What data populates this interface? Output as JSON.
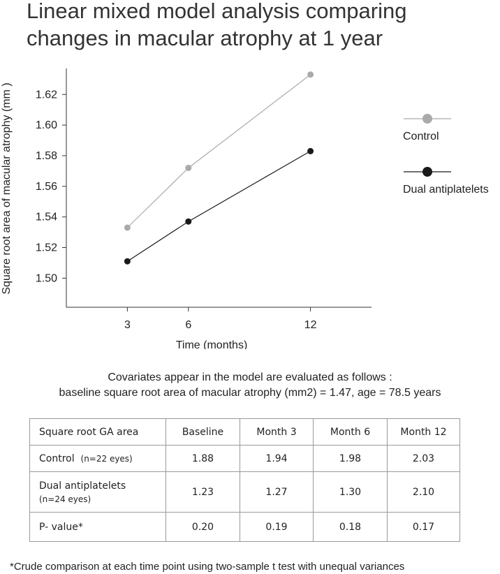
{
  "chart_data": {
    "type": "line",
    "title": "Linear mixed model analysis comparing changes in macular atrophy at 1 year",
    "xlabel": "Time (months)",
    "ylabel": "Square root area of macular atrophy (mm )",
    "x": [
      3,
      6,
      12
    ],
    "x_ticks": [
      "3",
      "6",
      "12"
    ],
    "y_ticks": [
      "1.50",
      "1.52",
      "1.54",
      "1.56",
      "1.58",
      "1.60",
      "1.62"
    ],
    "xlim": [
      0,
      15
    ],
    "ylim": [
      1.481,
      1.637
    ],
    "grid": false,
    "legend_position": "right",
    "series": [
      {
        "name": "Control",
        "values": [
          1.533,
          1.572,
          1.633
        ],
        "color": "#aaaaaa"
      },
      {
        "name": "Dual antiplatelets",
        "values": [
          1.511,
          1.537,
          1.583
        ],
        "color": "#1a1a1a"
      }
    ]
  },
  "covariates": {
    "line1": "Covariates appear in the model are evaluated as follows :",
    "line2": "baseline square root area of macular atrophy (mm2) = 1.47, age = 78.5 years"
  },
  "table": {
    "headers": [
      "Square root GA area",
      "Baseline",
      "Month 3",
      "Month 6",
      "Month 12"
    ],
    "rows": [
      {
        "label": "Control",
        "sublabel": "(n=22 eyes)",
        "values": [
          "1.88",
          "1.94",
          "1.98",
          "2.03"
        ]
      },
      {
        "label": "Dual antiplatelets",
        "sublabel": "(n=24 eyes)",
        "values": [
          "1.23",
          "1.27",
          "1.30",
          "2.10"
        ]
      },
      {
        "label": "P- value*",
        "values": [
          "0.20",
          "0.19",
          "0.18",
          "0.17"
        ]
      }
    ]
  },
  "footnote": "*Crude comparison at each time point using two-sample t test with unequal variances"
}
